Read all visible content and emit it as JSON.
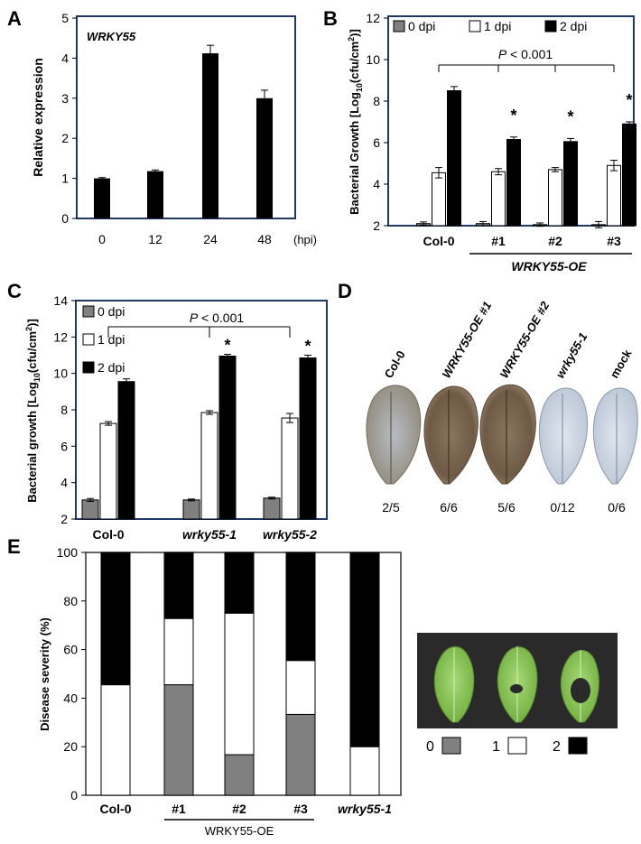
{
  "panel_letters": {
    "a": "A",
    "b": "B",
    "c": "C",
    "d": "D",
    "e": "E"
  },
  "chart_data": [
    {
      "panel": "A",
      "type": "bar",
      "gene": "WRKY55",
      "categories": [
        "0",
        "12",
        "24",
        "48"
      ],
      "x_unit": "(hpi)",
      "values": [
        1.0,
        1.18,
        4.12,
        3.0
      ],
      "errors": [
        0.02,
        0.03,
        0.2,
        0.2
      ],
      "ylabel": "Relative expression",
      "ylim": [
        0,
        5
      ],
      "yticks": [
        "0",
        "1",
        "2",
        "3",
        "4",
        "5"
      ]
    },
    {
      "panel": "B",
      "type": "bar",
      "categories": [
        "Col-0",
        "#1",
        "#2",
        "#3"
      ],
      "group_label": "WRKY55-OE",
      "series": [
        {
          "name": "0 dpi",
          "color": "#808080",
          "values": [
            2.1,
            2.1,
            2.05,
            2.05
          ],
          "errors": [
            0.08,
            0.1,
            0.08,
            0.15
          ]
        },
        {
          "name": "1 dpi",
          "color": "#ffffff",
          "values": [
            4.55,
            4.6,
            4.7,
            4.9
          ],
          "errors": [
            0.25,
            0.15,
            0.1,
            0.25
          ]
        },
        {
          "name": "2 dpi",
          "color": "#000000",
          "values": [
            8.5,
            6.15,
            6.05,
            6.9
          ],
          "errors": [
            0.2,
            0.12,
            0.15,
            0.1
          ]
        }
      ],
      "significance": [
        "",
        "*",
        "*",
        "*"
      ],
      "p_prefix": "P",
      "p_value": " < 0.001",
      "ylabel_main": "Bacterial Growth [Log",
      "ylabel_sub": "10",
      "ylabel_unit": "(cfu/cm",
      "ylabel_sup": "2",
      "ylabel_end": ")]",
      "ylim": [
        2,
        12
      ],
      "yticks": [
        "2",
        "4",
        "6",
        "8",
        "10",
        "12"
      ]
    },
    {
      "panel": "C",
      "type": "bar",
      "categories": [
        "Col-0",
        "wrky55-1",
        "wrky55-2"
      ],
      "series": [
        {
          "name": "0 dpi",
          "color": "#808080",
          "values": [
            3.05,
            3.05,
            3.15
          ],
          "errors": [
            0.08,
            0.05,
            0.05
          ]
        },
        {
          "name": "1 dpi",
          "color": "#ffffff",
          "values": [
            7.25,
            7.85,
            7.55
          ],
          "errors": [
            0.1,
            0.1,
            0.25
          ]
        },
        {
          "name": "2 dpi",
          "color": "#000000",
          "values": [
            9.55,
            10.95,
            10.85
          ],
          "errors": [
            0.15,
            0.1,
            0.15
          ]
        }
      ],
      "significance": [
        "",
        "*",
        "*"
      ],
      "p_prefix": "P",
      "p_value": " < 0.001",
      "ylabel_main": "Bacterial growth [Log",
      "ylabel_sub": "10",
      "ylabel_unit": "(cfu/cm",
      "ylabel_sup": "2",
      "ylabel_end": ")]",
      "ylim": [
        2,
        14
      ],
      "yticks": [
        "2",
        "4",
        "6",
        "8",
        "10",
        "12",
        "14"
      ]
    },
    {
      "panel": "E",
      "type": "bar",
      "stacked": true,
      "categories": [
        "Col-0",
        "#1",
        "#2",
        "#3",
        "wrky55-1"
      ],
      "group_label": "WRKY55-OE",
      "series": [
        {
          "name": "0",
          "color": "#808080",
          "values": [
            0,
            45.5,
            16.7,
            33.3,
            0
          ]
        },
        {
          "name": "1",
          "color": "#ffffff",
          "values": [
            45.5,
            27.3,
            58.3,
            22.2,
            20
          ]
        },
        {
          "name": "2",
          "color": "#000000",
          "values": [
            54.5,
            27.2,
            25.0,
            44.5,
            80
          ]
        }
      ],
      "ylabel": "Disease severity (%)",
      "ylim": [
        0,
        100
      ],
      "yticks": [
        "0",
        "20",
        "40",
        "60",
        "80",
        "100"
      ]
    }
  ],
  "panel_d": {
    "genotypes": [
      "Col-0",
      "WRKY55-OE #1",
      "WRKY55-OE #2",
      "wrky55-1",
      "mock"
    ],
    "ratios": [
      "2/5",
      "6/6",
      "5/6",
      "0/12",
      "0/6"
    ]
  },
  "panel_e_photo": {
    "legend": [
      {
        "label": "0",
        "color": "#808080"
      },
      {
        "label": "1",
        "color": "#ffffff"
      },
      {
        "label": "2",
        "color": "#000000"
      }
    ]
  },
  "colors": {
    "frame": "#1f3864",
    "accent": "#000000"
  }
}
